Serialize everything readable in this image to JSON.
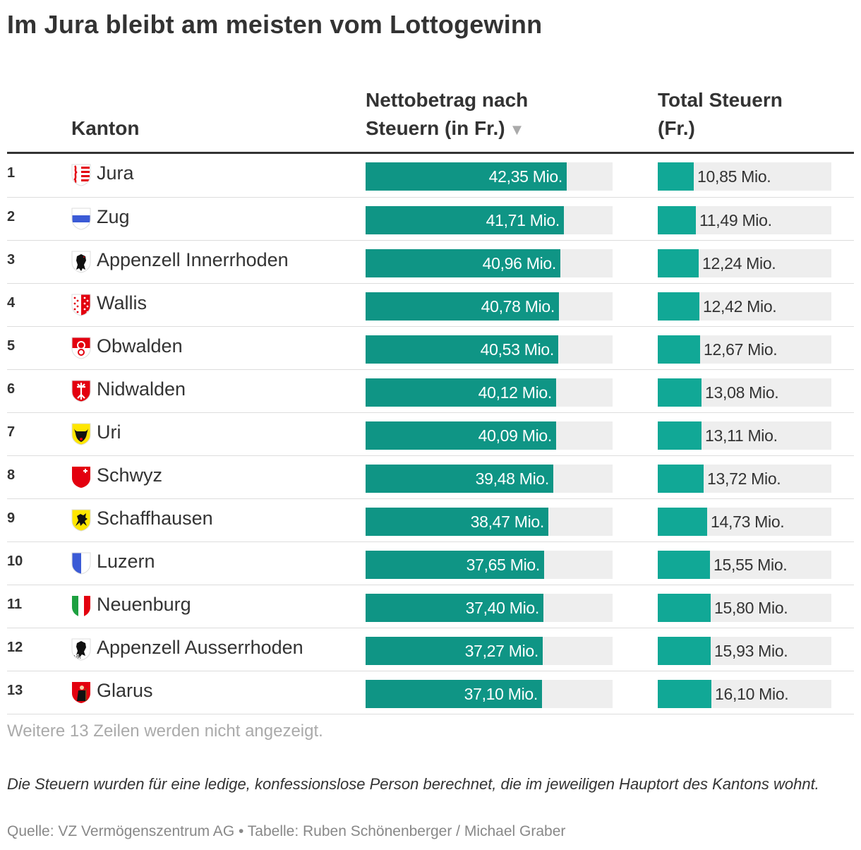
{
  "title": "Im Jura bleibt am meisten vom Lottogewinn",
  "headers": {
    "kanton": "Kanton",
    "netto_line1": "Nettobetrag nach",
    "netto_line2": "Steuern (in Fr.)",
    "sort_arrow": "▼",
    "total_line1": "Total Steuern",
    "total_line2": "(Fr.)"
  },
  "colors": {
    "net_bar": "#0f9585",
    "tax_bar": "#11a896",
    "track": "#eeeeee"
  },
  "chart_data": {
    "type": "table",
    "columns": [
      "Kanton",
      "Nettobetrag nach Steuern (in Fr.)",
      "Total Steuern (Fr.)"
    ],
    "unit": "Mio.",
    "bar_max": {
      "net": 52,
      "tax": 52
    },
    "rows": [
      {
        "rank": "1",
        "kanton": "Jura",
        "icon": "jura-flag-icon",
        "net": 42.35,
        "net_label": "42,35 Mio.",
        "tax": 10.85,
        "tax_label": "10,85 Mio."
      },
      {
        "rank": "2",
        "kanton": "Zug",
        "icon": "zug-flag-icon",
        "net": 41.71,
        "net_label": "41,71 Mio.",
        "tax": 11.49,
        "tax_label": "11,49 Mio."
      },
      {
        "rank": "3",
        "kanton": "Appenzell Innerrhoden",
        "icon": "appenzell-innerrhoden-flag-icon",
        "net": 40.96,
        "net_label": "40,96 Mio.",
        "tax": 12.24,
        "tax_label": "12,24 Mio."
      },
      {
        "rank": "4",
        "kanton": "Wallis",
        "icon": "wallis-flag-icon",
        "net": 40.78,
        "net_label": "40,78 Mio.",
        "tax": 12.42,
        "tax_label": "12,42 Mio."
      },
      {
        "rank": "5",
        "kanton": "Obwalden",
        "icon": "obwalden-flag-icon",
        "net": 40.53,
        "net_label": "40,53 Mio.",
        "tax": 12.67,
        "tax_label": "12,67 Mio."
      },
      {
        "rank": "6",
        "kanton": "Nidwalden",
        "icon": "nidwalden-flag-icon",
        "net": 40.12,
        "net_label": "40,12 Mio.",
        "tax": 13.08,
        "tax_label": "13,08 Mio."
      },
      {
        "rank": "7",
        "kanton": "Uri",
        "icon": "uri-flag-icon",
        "net": 40.09,
        "net_label": "40,09 Mio.",
        "tax": 13.11,
        "tax_label": "13,11 Mio."
      },
      {
        "rank": "8",
        "kanton": "Schwyz",
        "icon": "schwyz-flag-icon",
        "net": 39.48,
        "net_label": "39,48 Mio.",
        "tax": 13.72,
        "tax_label": "13,72 Mio."
      },
      {
        "rank": "9",
        "kanton": "Schaffhausen",
        "icon": "schaffhausen-flag-icon",
        "net": 38.47,
        "net_label": "38,47 Mio.",
        "tax": 14.73,
        "tax_label": "14,73 Mio."
      },
      {
        "rank": "10",
        "kanton": "Luzern",
        "icon": "luzern-flag-icon",
        "net": 37.65,
        "net_label": "37,65 Mio.",
        "tax": 15.55,
        "tax_label": "15,55 Mio."
      },
      {
        "rank": "11",
        "kanton": "Neuenburg",
        "icon": "neuenburg-flag-icon",
        "net": 37.4,
        "net_label": "37,40 Mio.",
        "tax": 15.8,
        "tax_label": "15,80 Mio."
      },
      {
        "rank": "12",
        "kanton": "Appenzell Ausserrhoden",
        "icon": "appenzell-ausserrhoden-flag-icon",
        "net": 37.27,
        "net_label": "37,27 Mio.",
        "tax": 15.93,
        "tax_label": "15,93 Mio."
      },
      {
        "rank": "13",
        "kanton": "Glarus",
        "icon": "glarus-flag-icon",
        "net": 37.1,
        "net_label": "37,10 Mio.",
        "tax": 16.1,
        "tax_label": "16,10 Mio."
      }
    ]
  },
  "more_rows": "Weitere 13 Zeilen werden nicht angezeigt.",
  "note": "Die Steuern wurden für eine ledige, konfessionslose Person berechnet, die im jeweiligen Hauptort des Kantons wohnt.",
  "source": "Quelle: VZ Vermögenszentrum AG • Tabelle: Ruben Schönenberger / Michael Graber"
}
